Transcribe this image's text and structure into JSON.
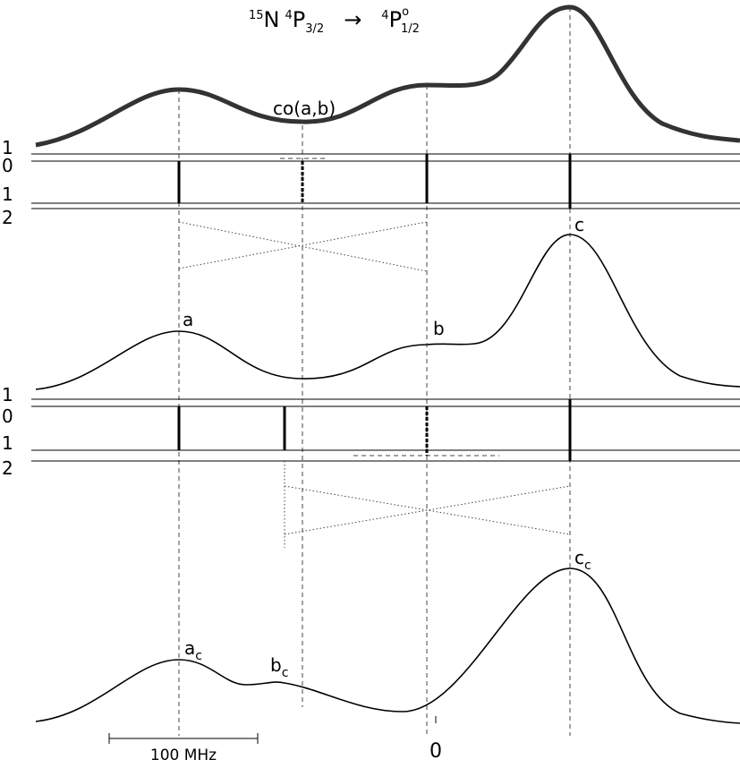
{
  "title": {
    "isotope_mass": "15",
    "element": "N",
    "lower_multiplicity": "4",
    "lower_term": "P",
    "lower_j": "3/2",
    "arrow": "→",
    "upper_multiplicity": "4",
    "upper_term": "P",
    "upper_parity": "o",
    "upper_j": "1/2"
  },
  "panels": [
    {
      "level_labels": [
        "1",
        "0",
        "1",
        "2"
      ],
      "crossover_label": "co(a,b)"
    },
    {
      "level_labels": [
        "1",
        "0",
        "1",
        "2"
      ],
      "peak_labels": [
        "a",
        "b",
        "c"
      ]
    },
    {
      "peak_labels": [
        {
          "main": "a",
          "sub": "c"
        },
        {
          "main": "b",
          "sub": "c"
        },
        {
          "main": "c",
          "sub": "c"
        }
      ]
    }
  ],
  "scale_bar": "100 MHz",
  "zero_label": "0"
}
